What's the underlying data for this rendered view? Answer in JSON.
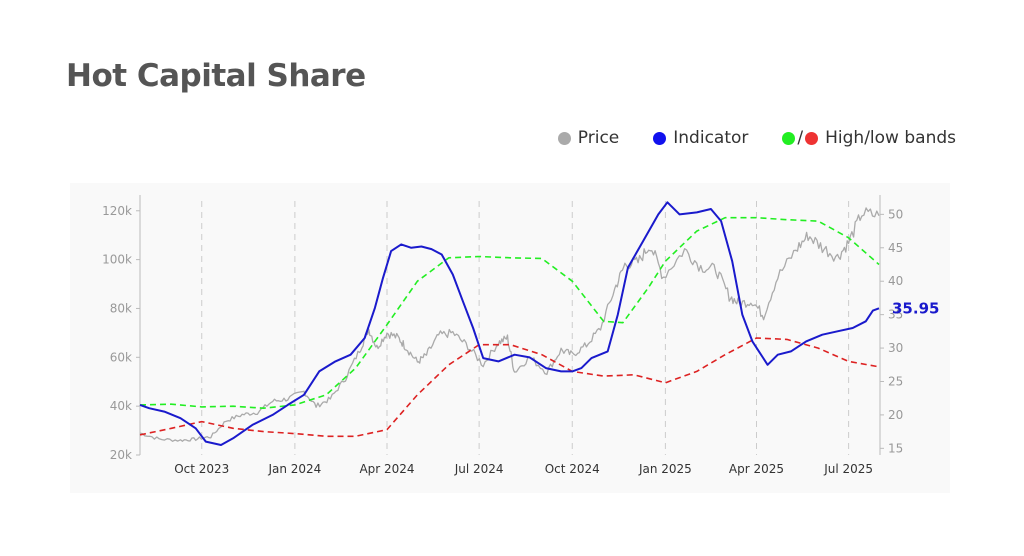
{
  "title": "Hot Capital Share",
  "legend": {
    "price": {
      "label": "Price",
      "color": "#aaaaaa"
    },
    "indicator": {
      "label": "Indicator",
      "color": "#1111ee"
    },
    "bands": {
      "label": "High/low bands",
      "slash": "/",
      "high_color": "#22ee22",
      "low_color": "#ee3333"
    }
  },
  "chart_data": {
    "type": "line",
    "x_ticks": [
      {
        "label": "Oct 2023",
        "date": "2023-10-01"
      },
      {
        "label": "Jan 2024",
        "date": "2024-01-01"
      },
      {
        "label": "Apr 2024",
        "date": "2024-04-01"
      },
      {
        "label": "Jul 2024",
        "date": "2024-07-01"
      },
      {
        "label": "Oct 2024",
        "date": "2024-10-01"
      },
      {
        "label": "Jan 2025",
        "date": "2025-01-01"
      },
      {
        "label": "Apr 2025",
        "date": "2025-04-01"
      },
      {
        "label": "Jul 2025",
        "date": "2025-07-01"
      }
    ],
    "xlim": [
      "2023-08-01",
      "2025-08-01"
    ],
    "y_left": {
      "ticks": [
        "20k",
        "40k",
        "60k",
        "80k",
        "100k",
        "120k"
      ],
      "values": [
        20000,
        40000,
        60000,
        80000,
        100000,
        120000
      ],
      "ylim": [
        20000,
        124000
      ]
    },
    "y_right": {
      "ticks": [
        "15",
        "20",
        "25",
        "30",
        "35",
        "40",
        "45",
        "50"
      ],
      "values": [
        15,
        20,
        25,
        30,
        35,
        40,
        45,
        50
      ],
      "ylim": [
        14,
        52
      ]
    },
    "grid": "vertical-dashed",
    "last_value_label": "35.95",
    "series": [
      {
        "name": "Price",
        "axis": "left",
        "color": "#aaaaaa",
        "style": "solid",
        "points": [
          [
            "2023-08-01",
            29000
          ],
          [
            "2023-08-20",
            26500
          ],
          [
            "2023-09-10",
            26000
          ],
          [
            "2023-09-25",
            26500
          ],
          [
            "2023-10-10",
            27500
          ],
          [
            "2023-10-25",
            34000
          ],
          [
            "2023-11-10",
            36500
          ],
          [
            "2023-11-25",
            37500
          ],
          [
            "2023-12-10",
            42000
          ],
          [
            "2023-12-25",
            43000
          ],
          [
            "2024-01-10",
            46000
          ],
          [
            "2024-01-22",
            40000
          ],
          [
            "2024-02-05",
            43000
          ],
          [
            "2024-02-20",
            51500
          ],
          [
            "2024-03-05",
            63000
          ],
          [
            "2024-03-14",
            71500
          ],
          [
            "2024-03-22",
            64000
          ],
          [
            "2024-04-01",
            70000
          ],
          [
            "2024-04-12",
            68000
          ],
          [
            "2024-04-20",
            64000
          ],
          [
            "2024-05-01",
            58000
          ],
          [
            "2024-05-10",
            61000
          ],
          [
            "2024-05-22",
            69000
          ],
          [
            "2024-06-05",
            70000
          ],
          [
            "2024-06-20",
            64500
          ],
          [
            "2024-07-05",
            57000
          ],
          [
            "2024-07-20",
            66000
          ],
          [
            "2024-07-29",
            68000
          ],
          [
            "2024-08-05",
            54000
          ],
          [
            "2024-08-20",
            60000
          ],
          [
            "2024-09-06",
            54000
          ],
          [
            "2024-09-20",
            63000
          ],
          [
            "2024-10-01",
            61000
          ],
          [
            "2024-10-15",
            65000
          ],
          [
            "2024-10-29",
            72000
          ],
          [
            "2024-11-12",
            88000
          ],
          [
            "2024-11-22",
            98000
          ],
          [
            "2024-12-05",
            99000
          ],
          [
            "2024-12-17",
            106000
          ],
          [
            "2024-12-30",
            93000
          ],
          [
            "2025-01-20",
            104000
          ],
          [
            "2025-02-05",
            97000
          ],
          [
            "2025-02-20",
            96000
          ],
          [
            "2025-03-05",
            85000
          ],
          [
            "2025-03-15",
            82000
          ],
          [
            "2025-03-28",
            83000
          ],
          [
            "2025-04-08",
            77000
          ],
          [
            "2025-04-22",
            93000
          ],
          [
            "2025-05-10",
            104000
          ],
          [
            "2025-05-22",
            110000
          ],
          [
            "2025-06-05",
            105000
          ],
          [
            "2025-06-20",
            101000
          ],
          [
            "2025-07-01",
            107000
          ],
          [
            "2025-07-14",
            119000
          ],
          [
            "2025-07-31",
            118000
          ]
        ]
      },
      {
        "name": "Indicator",
        "axis": "right",
        "color": "#1a1acc",
        "style": "solid",
        "points": [
          [
            "2023-08-01",
            21.5
          ],
          [
            "2023-08-10",
            21.0
          ],
          [
            "2023-08-25",
            20.5
          ],
          [
            "2023-09-10",
            19.5
          ],
          [
            "2023-09-25",
            18.0
          ],
          [
            "2023-10-05",
            16.0
          ],
          [
            "2023-10-20",
            15.5
          ],
          [
            "2023-11-01",
            16.5
          ],
          [
            "2023-11-20",
            18.5
          ],
          [
            "2023-12-10",
            20.0
          ],
          [
            "2023-12-25",
            21.5
          ],
          [
            "2024-01-10",
            23.0
          ],
          [
            "2024-01-25",
            26.5
          ],
          [
            "2024-02-10",
            28.0
          ],
          [
            "2024-02-25",
            29.0
          ],
          [
            "2024-03-10",
            31.5
          ],
          [
            "2024-03-20",
            36.0
          ],
          [
            "2024-03-28",
            40.5
          ],
          [
            "2024-04-05",
            44.5
          ],
          [
            "2024-04-15",
            45.5
          ],
          [
            "2024-04-25",
            45.0
          ],
          [
            "2024-05-05",
            45.2
          ],
          [
            "2024-05-15",
            44.8
          ],
          [
            "2024-05-25",
            44.0
          ],
          [
            "2024-06-05",
            41.0
          ],
          [
            "2024-06-15",
            37.0
          ],
          [
            "2024-06-25",
            33.0
          ],
          [
            "2024-07-05",
            28.5
          ],
          [
            "2024-07-20",
            28.0
          ],
          [
            "2024-08-05",
            29.0
          ],
          [
            "2024-08-20",
            28.6
          ],
          [
            "2024-09-05",
            27.0
          ],
          [
            "2024-09-20",
            26.5
          ],
          [
            "2024-10-01",
            26.5
          ],
          [
            "2024-10-10",
            27.0
          ],
          [
            "2024-10-20",
            28.5
          ],
          [
            "2024-11-05",
            29.5
          ],
          [
            "2024-11-15",
            35.0
          ],
          [
            "2024-11-25",
            42.0
          ],
          [
            "2024-12-10",
            46.0
          ],
          [
            "2024-12-25",
            50.0
          ],
          [
            "2025-01-03",
            51.8
          ],
          [
            "2025-01-15",
            50.0
          ],
          [
            "2025-02-01",
            50.3
          ],
          [
            "2025-02-15",
            50.8
          ],
          [
            "2025-02-25",
            49.0
          ],
          [
            "2025-03-08",
            43.0
          ],
          [
            "2025-03-18",
            35.0
          ],
          [
            "2025-03-28",
            31.0
          ],
          [
            "2025-04-12",
            27.5
          ],
          [
            "2025-04-22",
            29.0
          ],
          [
            "2025-05-05",
            29.5
          ],
          [
            "2025-05-20",
            31.0
          ],
          [
            "2025-06-05",
            32.0
          ],
          [
            "2025-06-20",
            32.5
          ],
          [
            "2025-07-05",
            33.0
          ],
          [
            "2025-07-18",
            34.0
          ],
          [
            "2025-07-25",
            35.6
          ],
          [
            "2025-07-31",
            35.95
          ]
        ]
      },
      {
        "name": "High band",
        "axis": "right",
        "color": "#22ee22",
        "style": "dashed",
        "points": [
          [
            "2023-08-01",
            21.5
          ],
          [
            "2023-09-01",
            21.6
          ],
          [
            "2023-10-01",
            21.2
          ],
          [
            "2023-11-01",
            21.3
          ],
          [
            "2023-12-01",
            21.0
          ],
          [
            "2024-01-01",
            21.5
          ],
          [
            "2024-02-01",
            23.0
          ],
          [
            "2024-03-01",
            27.0
          ],
          [
            "2024-04-01",
            33.5
          ],
          [
            "2024-05-01",
            40.0
          ],
          [
            "2024-06-01",
            43.5
          ],
          [
            "2024-07-01",
            43.7
          ],
          [
            "2024-08-01",
            43.5
          ],
          [
            "2024-09-01",
            43.4
          ],
          [
            "2024-10-01",
            40.0
          ],
          [
            "2024-11-01",
            34.0
          ],
          [
            "2024-11-20",
            33.8
          ],
          [
            "2024-12-15",
            39.0
          ],
          [
            "2025-01-01",
            43.0
          ],
          [
            "2025-02-01",
            47.5
          ],
          [
            "2025-03-01",
            49.5
          ],
          [
            "2025-04-01",
            49.5
          ],
          [
            "2025-05-01",
            49.2
          ],
          [
            "2025-06-01",
            49.0
          ],
          [
            "2025-07-01",
            46.5
          ],
          [
            "2025-07-31",
            42.5
          ]
        ]
      },
      {
        "name": "Low band",
        "axis": "right",
        "color": "#dd2222",
        "style": "dashed",
        "points": [
          [
            "2023-08-01",
            17.0
          ],
          [
            "2023-09-01",
            18.0
          ],
          [
            "2023-10-01",
            19.0
          ],
          [
            "2023-11-01",
            18.0
          ],
          [
            "2023-12-01",
            17.5
          ],
          [
            "2024-01-01",
            17.2
          ],
          [
            "2024-02-01",
            16.8
          ],
          [
            "2024-03-01",
            16.8
          ],
          [
            "2024-04-01",
            17.8
          ],
          [
            "2024-05-01",
            23.0
          ],
          [
            "2024-06-01",
            27.5
          ],
          [
            "2024-07-01",
            30.5
          ],
          [
            "2024-08-01",
            30.5
          ],
          [
            "2024-09-01",
            29.0
          ],
          [
            "2024-10-01",
            26.5
          ],
          [
            "2024-11-01",
            25.8
          ],
          [
            "2024-12-01",
            26.0
          ],
          [
            "2025-01-01",
            24.8
          ],
          [
            "2025-02-01",
            26.5
          ],
          [
            "2025-03-01",
            29.0
          ],
          [
            "2025-04-01",
            31.5
          ],
          [
            "2025-05-01",
            31.3
          ],
          [
            "2025-06-01",
            30.0
          ],
          [
            "2025-07-01",
            28.0
          ],
          [
            "2025-07-31",
            27.2
          ]
        ]
      }
    ]
  }
}
